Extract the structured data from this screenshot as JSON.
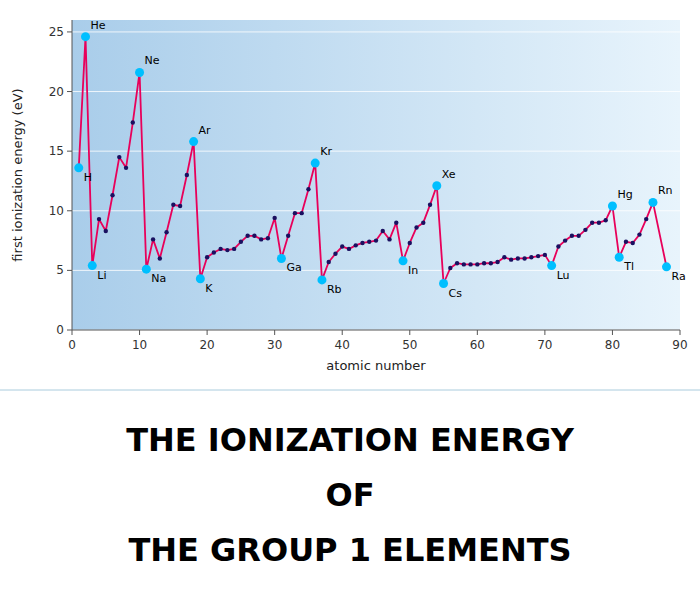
{
  "chart_data": {
    "type": "line",
    "title": [
      "THE IONIZATION ENERGY",
      "OF",
      "THE GROUP 1 ELEMENTS"
    ],
    "xlabel": "atomic number",
    "ylabel": "first ionization energy (eV)",
    "x": [
      1,
      2,
      3,
      4,
      5,
      6,
      7,
      8,
      9,
      10,
      11,
      12,
      13,
      14,
      15,
      16,
      17,
      18,
      19,
      20,
      21,
      22,
      23,
      24,
      25,
      26,
      27,
      28,
      29,
      30,
      31,
      32,
      33,
      34,
      35,
      36,
      37,
      38,
      39,
      40,
      41,
      42,
      43,
      44,
      45,
      46,
      47,
      48,
      49,
      50,
      51,
      52,
      53,
      54,
      55,
      56,
      57,
      58,
      59,
      60,
      61,
      62,
      63,
      64,
      65,
      66,
      67,
      68,
      69,
      70,
      71,
      72,
      73,
      74,
      75,
      76,
      77,
      78,
      79,
      80,
      81,
      82,
      83,
      84,
      85,
      86,
      88
    ],
    "series": [
      {
        "color": "#e8005a",
        "marker": "circle",
        "values": [
          13.6,
          24.6,
          5.4,
          9.3,
          8.3,
          11.3,
          14.5,
          13.6,
          17.4,
          21.6,
          5.1,
          7.6,
          6.0,
          8.2,
          10.5,
          10.4,
          13.0,
          15.8,
          4.3,
          6.1,
          6.5,
          6.8,
          6.7,
          6.8,
          7.4,
          7.9,
          7.9,
          7.6,
          7.7,
          9.4,
          6.0,
          7.9,
          9.8,
          9.8,
          11.8,
          14.0,
          4.2,
          5.7,
          6.4,
          7.0,
          6.8,
          7.1,
          7.3,
          7.4,
          7.5,
          8.3,
          7.6,
          9.0,
          5.8,
          7.3,
          8.6,
          9.0,
          10.5,
          12.1,
          3.9,
          5.2,
          5.6,
          5.5,
          5.5,
          5.5,
          5.6,
          5.6,
          5.7,
          6.1,
          5.9,
          6.0,
          6.0,
          6.1,
          6.2,
          6.3,
          5.4,
          7.0,
          7.5,
          7.9,
          7.9,
          8.4,
          9.0,
          9.0,
          9.2,
          10.4,
          6.1,
          7.4,
          7.3,
          8.0,
          9.3,
          10.7,
          5.3
        ],
        "colors": [
          "#00bfff",
          "#00bfff",
          "#00bfff",
          "#1a1060",
          "#1a1060",
          "#1a1060",
          "#1a1060",
          "#1a1060",
          "#1a1060",
          "#00bfff",
          "#00bfff",
          "#1a1060",
          "#1a1060",
          "#1a1060",
          "#1a1060",
          "#1a1060",
          "#1a1060",
          "#00bfff",
          "#00bfff",
          "#1a1060",
          "#1a1060",
          "#1a1060",
          "#1a1060",
          "#1a1060",
          "#1a1060",
          "#1a1060",
          "#1a1060",
          "#1a1060",
          "#1a1060",
          "#1a1060",
          "#00bfff",
          "#1a1060",
          "#1a1060",
          "#1a1060",
          "#1a1060",
          "#00bfff",
          "#00bfff",
          "#1a1060",
          "#1a1060",
          "#1a1060",
          "#1a1060",
          "#1a1060",
          "#1a1060",
          "#1a1060",
          "#1a1060",
          "#1a1060",
          "#1a1060",
          "#1a1060",
          "#00bfff",
          "#1a1060",
          "#1a1060",
          "#1a1060",
          "#1a1060",
          "#00bfff",
          "#00bfff",
          "#1a1060",
          "#1a1060",
          "#1a1060",
          "#1a1060",
          "#1a1060",
          "#1a1060",
          "#1a1060",
          "#1a1060",
          "#1a1060",
          "#1a1060",
          "#1a1060",
          "#1a1060",
          "#1a1060",
          "#1a1060",
          "#1a1060",
          "#00bfff",
          "#1a1060",
          "#1a1060",
          "#1a1060",
          "#1a1060",
          "#1a1060",
          "#1a1060",
          "#1a1060",
          "#1a1060",
          "#00bfff",
          "#00bfff",
          "#1a1060",
          "#1a1060",
          "#1a1060",
          "#1a1060",
          "#00bfff",
          "#00bfff"
        ]
      }
    ],
    "annotations": [
      {
        "text": "H",
        "x": 1,
        "y": 13.6
      },
      {
        "text": "He",
        "x": 2,
        "y": 24.6
      },
      {
        "text": "Li",
        "x": 3,
        "y": 5.4
      },
      {
        "text": "Ne",
        "x": 10,
        "y": 21.6
      },
      {
        "text": "Na",
        "x": 11,
        "y": 5.1
      },
      {
        "text": "Ar",
        "x": 18,
        "y": 15.8
      },
      {
        "text": "K",
        "x": 19,
        "y": 4.3
      },
      {
        "text": "Ga",
        "x": 31,
        "y": 6.0
      },
      {
        "text": "Kr",
        "x": 36,
        "y": 14.0
      },
      {
        "text": "Rb",
        "x": 37,
        "y": 4.2
      },
      {
        "text": "In",
        "x": 49,
        "y": 5.8
      },
      {
        "text": "Xe",
        "x": 54,
        "y": 12.1
      },
      {
        "text": "Cs",
        "x": 55,
        "y": 3.9
      },
      {
        "text": "Lu",
        "x": 71,
        "y": 5.4
      },
      {
        "text": "Hg",
        "x": 80,
        "y": 10.4
      },
      {
        "text": "Tl",
        "x": 81,
        "y": 6.1
      },
      {
        "text": "Rn",
        "x": 86,
        "y": 10.7
      },
      {
        "text": "Ra",
        "x": 88,
        "y": 5.3
      }
    ],
    "xlim": [
      0,
      90
    ],
    "ylim": [
      0,
      26
    ],
    "xticks": [
      0,
      10,
      20,
      30,
      40,
      50,
      60,
      70,
      80,
      90
    ],
    "yticks": [
      0,
      5,
      10,
      15,
      20,
      25
    ],
    "grid": true
  }
}
